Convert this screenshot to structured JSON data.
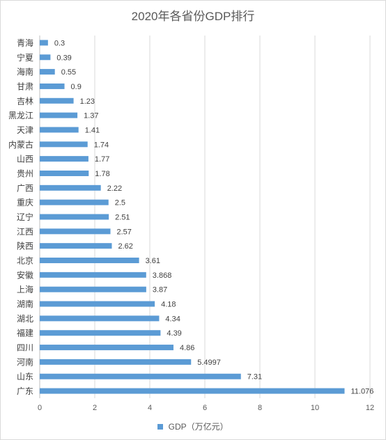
{
  "chart_data": {
    "type": "bar",
    "orientation": "horizontal",
    "title": "2020年各省份GDP排行",
    "categories": [
      "青海",
      "宁夏",
      "海南",
      "甘肃",
      "吉林",
      "黑龙江",
      "天津",
      "内蒙古",
      "山西",
      "贵州",
      "广西",
      "重庆",
      "辽宁",
      "江西",
      "陕西",
      "北京",
      "安徽",
      "上海",
      "湖南",
      "湖北",
      "福建",
      "四川",
      "河南",
      "山东",
      "广东"
    ],
    "data_labels": [
      "0.3",
      "0.39",
      "0.55",
      "0.9",
      "1.23",
      "1.37",
      "1.41",
      "1.74",
      "1.77",
      "1.78",
      "2.22",
      "2.5",
      "2.51",
      "2.57",
      "2.62",
      "3.61",
      "3.868",
      "3.87",
      "4.18",
      "4.34",
      "4.39",
      "4.86",
      "5.4997",
      "7.31",
      "11.076"
    ],
    "series": [
      {
        "name": "GDP（万亿元）",
        "values": [
          0.3,
          0.39,
          0.55,
          0.9,
          1.23,
          1.37,
          1.41,
          1.74,
          1.77,
          1.78,
          2.22,
          2.5,
          2.51,
          2.57,
          2.62,
          3.61,
          3.868,
          3.87,
          4.18,
          4.34,
          4.39,
          4.86,
          5.4997,
          7.31,
          11.076
        ],
        "color": "#5b9bd5"
      }
    ],
    "xlim": [
      0,
      12
    ],
    "xticks": [
      "0",
      "2",
      "4",
      "6",
      "8",
      "10",
      "12"
    ],
    "grid": "vertical",
    "legend": "bottom",
    "colors": {
      "bar": "#5b9bd5",
      "grid": "#d9d9d9",
      "text": "#595959",
      "axis": "#bfbfbf"
    }
  }
}
